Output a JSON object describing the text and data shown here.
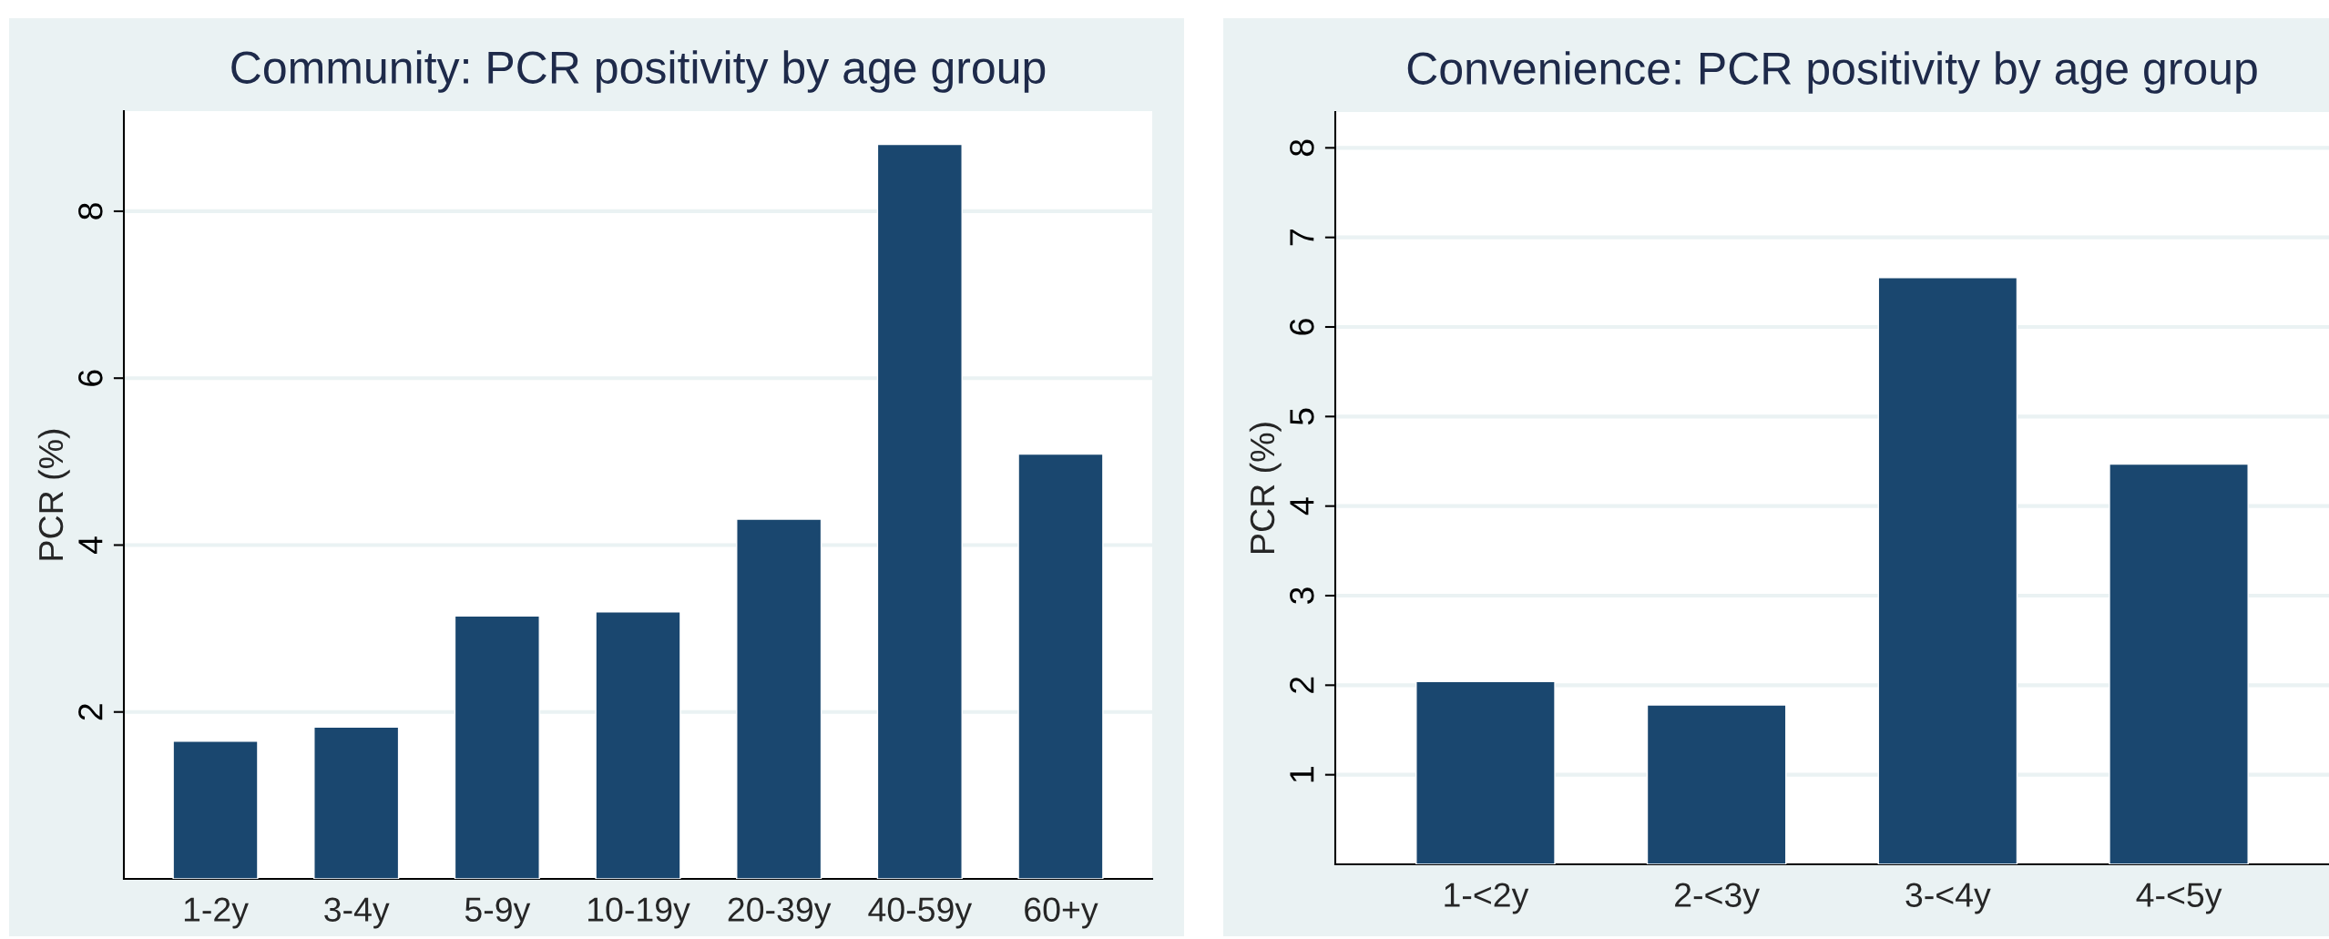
{
  "chart_data": [
    {
      "type": "bar",
      "title": "Community: PCR positivity by age group",
      "ylabel": "PCR (%)",
      "categories": [
        "1-2y",
        "3-4y",
        "5-9y",
        "10-19y",
        "20-39y",
        "40-59y",
        "60+y"
      ],
      "values": [
        1.65,
        1.82,
        3.15,
        3.2,
        4.31,
        8.8,
        5.09
      ],
      "color": "#1a476f",
      "ylim": [
        0,
        9.2
      ],
      "yticks": [
        2,
        4,
        6,
        8
      ],
      "grid": "y"
    },
    {
      "type": "bar",
      "title": "Convenience: PCR positivity by age group",
      "ylabel": "PCR (%)",
      "categories": [
        "1-<2y",
        "2-<3y",
        "3-<4y",
        "4-<5y"
      ],
      "values": [
        2.04,
        1.78,
        6.55,
        4.47
      ],
      "color": "#1a476f",
      "ylim": [
        0,
        8.4
      ],
      "yticks": [
        1,
        2,
        3,
        4,
        5,
        6,
        7,
        8
      ],
      "grid": "y"
    }
  ]
}
